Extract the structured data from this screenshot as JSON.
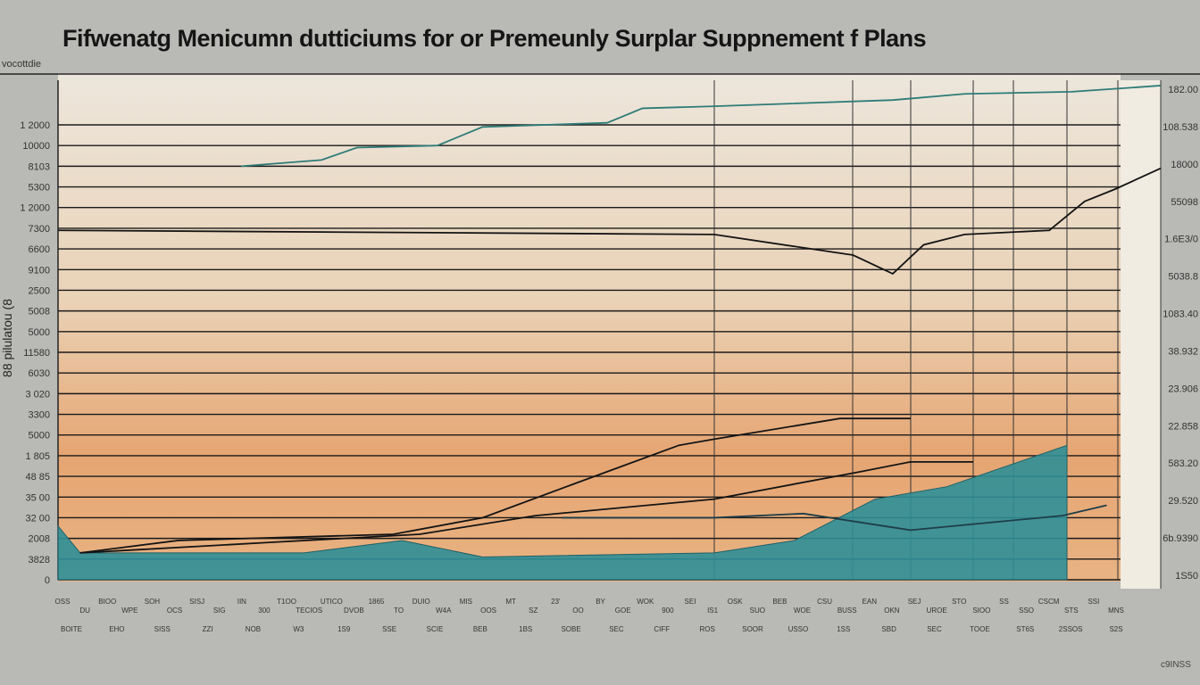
{
  "chart_data": {
    "type": "line",
    "title": "Fifwenatg Menicumn dutticiums for or Premeunly Surplar Suppnement f Plans",
    "subtitle": "vocottdie",
    "ylabel": "88 pilulatou (8",
    "footer_label": "c9INSS",
    "y_tick_labels": [
      "0",
      "3828",
      "2008",
      "32 00",
      "35 00",
      "48 85",
      "1 805",
      "5000",
      "3300",
      "3 020",
      "6030",
      "11580",
      "5000",
      "5008",
      "2500",
      "9100",
      "6600",
      "7300",
      "1 2000",
      "5300",
      "8103",
      "10000",
      "1 2000"
    ],
    "right_labels": [
      "1S50",
      "6b.9390",
      "29.520",
      "583.20",
      "22.858",
      "23.906",
      "38.932",
      "1083.40",
      "5038.8",
      "1.6E3/0",
      "55098",
      "18000",
      "108.538",
      "182.00"
    ],
    "x_tick_labels": [
      "OSS",
      "DU",
      "BIOO",
      "WPE",
      "SOH",
      "OCS",
      "SISJ",
      "SIG",
      "IIN",
      "300",
      "T1OO",
      "TECIOS",
      "UTICO",
      "DVOB",
      "1865",
      "TO",
      "DUIO",
      "W4A",
      "MIS",
      "OOS",
      "MT",
      "SZ",
      "23'",
      "OO",
      "BY",
      "GOE",
      "WOK",
      "900",
      "SEI",
      "IS1",
      "OSK",
      "SUO",
      "BEB",
      "WOE",
      "CSU",
      "BUSS",
      "EAN",
      "OKN",
      "SEJ",
      "UROE",
      "STO",
      "SIOO",
      "SS",
      "SSO",
      "CSCM",
      "STS",
      "SSI",
      "MNS"
    ],
    "x_tick_labels_row2": [
      "BOITE",
      "EHO",
      "SISS",
      "ZZI",
      "NOB",
      "W3",
      "1S9",
      "SSE",
      "SCIE",
      "BEB",
      "1BS",
      "SOBE",
      "SEC",
      "CIFF",
      "ROS",
      "SOOR",
      "USSO",
      "1SS",
      "SBD",
      "SEC",
      "TOOE",
      "ST6S",
      "2SSOS",
      "S2S"
    ],
    "y_range_index": [
      0,
      22
    ],
    "x_range": [
      0,
      100
    ],
    "grid": true,
    "legend": "none",
    "colors": {
      "teal": "#2d8a92",
      "black": "#141414",
      "area": "#2f8f97",
      "bg_top": "#ede7dc",
      "bg_mid": "#e7a874"
    },
    "series": [
      {
        "color": "#2e7b78",
        "x": [
          16.6,
          23.9,
          27.1,
          34.4,
          38.5,
          49.8,
          53.0,
          59.5,
          75.7,
          82.2,
          91.9,
          100
        ],
        "y": [
          20.0,
          20.3,
          20.9,
          21.0,
          21.9,
          22.1,
          22.8,
          22.9,
          23.2,
          23.5,
          23.6,
          23.9
        ]
      },
      {
        "color": "#141414",
        "x": [
          0,
          59.5,
          72.1,
          75.7,
          78.5,
          82.2,
          89.9,
          93.1,
          95.9,
          100
        ],
        "y": [
          16.9,
          16.7,
          15.7,
          14.8,
          16.2,
          16.7,
          16.9,
          18.3,
          18.9,
          19.9
        ]
      },
      {
        "color": "#141414",
        "x": [
          2.0,
          10.9,
          30.4,
          38.5,
          46.6,
          56.3,
          59.5,
          70.9,
          77.3
        ],
        "y": [
          1.3,
          1.9,
          2.2,
          3.0,
          4.6,
          6.5,
          6.8,
          7.8,
          7.8
        ]
      },
      {
        "color": "#141414",
        "x": [
          2.0,
          19.0,
          32.8,
          43.3,
          59.5,
          72.5,
          77.3,
          83.0
        ],
        "y": [
          1.3,
          1.8,
          2.2,
          3.1,
          3.9,
          5.2,
          5.7,
          5.7
        ]
      },
      {
        "color": "#1e3d48",
        "x": [
          45.7,
          59.5,
          67.6,
          77.3,
          91.1,
          95.1
        ],
        "y": [
          3.0,
          3.0,
          3.2,
          2.4,
          3.1,
          3.6
        ]
      }
    ],
    "area": {
      "color": "#2f8f97",
      "x": [
        0,
        2.0,
        22.3,
        31.2,
        38.5,
        59.5,
        66.8,
        74.1,
        80.6,
        91.5
      ],
      "y": [
        2.6,
        1.3,
        1.3,
        1.9,
        1.1,
        1.3,
        1.9,
        3.9,
        4.5,
        6.5
      ]
    }
  }
}
